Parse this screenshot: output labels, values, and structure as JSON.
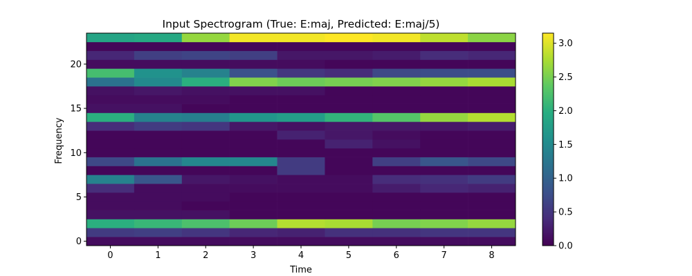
{
  "chart_data": {
    "type": "heatmap",
    "title": "Input Spectrogram (True: E:maj, Predicted: E:maj/5)",
    "xlabel": "Time",
    "ylabel": "Frequency",
    "x": [
      0,
      1,
      2,
      3,
      4,
      5,
      6,
      7,
      8
    ],
    "y": [
      0,
      1,
      2,
      3,
      4,
      5,
      6,
      7,
      8,
      9,
      10,
      11,
      12,
      13,
      14,
      15,
      16,
      17,
      18,
      19,
      20,
      21,
      22,
      23
    ],
    "xticks": [
      0,
      1,
      2,
      3,
      4,
      5,
      6,
      7,
      8
    ],
    "yticks": [
      0,
      5,
      10,
      15,
      20
    ],
    "xlim": [
      -0.5,
      8.5
    ],
    "ylim": [
      -0.5,
      23.5
    ],
    "colormap": "viridis",
    "colorbar": {
      "vmin": 0.0,
      "vmax": 3.15,
      "ticks": [
        0.0,
        0.5,
        1.0,
        1.5,
        2.0,
        2.5,
        3.0
      ],
      "tick_labels": [
        "0.0",
        "0.5",
        "1.0",
        "1.5",
        "2.0",
        "2.5",
        "3.0"
      ]
    },
    "z": [
      [
        0.1,
        0.1,
        0.1,
        0.1,
        0.1,
        0.1,
        0.1,
        0.1,
        0.1
      ],
      [
        0.55,
        0.6,
        0.5,
        0.35,
        0.3,
        0.45,
        0.45,
        0.5,
        0.5
      ],
      [
        2.0,
        2.1,
        2.25,
        2.45,
        2.8,
        2.75,
        2.5,
        2.55,
        2.65
      ],
      [
        0.15,
        0.15,
        0.15,
        0.05,
        0.05,
        0.05,
        0.05,
        0.05,
        0.05
      ],
      [
        0.1,
        0.1,
        0.05,
        0.05,
        0.05,
        0.05,
        0.05,
        0.05,
        0.05
      ],
      [
        0.1,
        0.1,
        0.1,
        0.05,
        0.05,
        0.05,
        0.05,
        0.05,
        0.05
      ],
      [
        0.4,
        0.1,
        0.1,
        0.1,
        0.1,
        0.1,
        0.25,
        0.35,
        0.3
      ],
      [
        1.4,
        0.85,
        0.2,
        0.15,
        0.1,
        0.1,
        0.4,
        0.45,
        0.55
      ],
      [
        0.05,
        0.05,
        0.05,
        0.05,
        0.55,
        0.05,
        0.05,
        0.05,
        0.05
      ],
      [
        0.7,
        1.2,
        1.45,
        1.45,
        0.55,
        0.05,
        0.6,
        0.85,
        0.7
      ],
      [
        0.05,
        0.05,
        0.05,
        0.05,
        0.05,
        0.05,
        0.05,
        0.05,
        0.05
      ],
      [
        0.05,
        0.05,
        0.05,
        0.05,
        0.05,
        0.3,
        0.15,
        0.05,
        0.05
      ],
      [
        0.05,
        0.05,
        0.05,
        0.05,
        0.3,
        0.2,
        0.1,
        0.05,
        0.05
      ],
      [
        0.4,
        0.55,
        0.5,
        0.2,
        0.15,
        0.2,
        0.2,
        0.2,
        0.25
      ],
      [
        2.0,
        1.4,
        1.35,
        1.65,
        1.75,
        2.05,
        2.3,
        2.65,
        2.8
      ],
      [
        0.15,
        0.15,
        0.05,
        0.05,
        0.05,
        0.05,
        0.05,
        0.05,
        0.05
      ],
      [
        0.1,
        0.1,
        0.1,
        0.05,
        0.05,
        0.05,
        0.05,
        0.05,
        0.05
      ],
      [
        0.15,
        0.2,
        0.15,
        0.15,
        0.15,
        0.05,
        0.05,
        0.05,
        0.05
      ],
      [
        1.2,
        1.5,
        2.0,
        2.55,
        2.45,
        2.5,
        2.55,
        2.65,
        2.75
      ],
      [
        2.2,
        1.6,
        1.4,
        0.8,
        0.5,
        0.4,
        0.7,
        0.75,
        0.75
      ],
      [
        0.1,
        0.1,
        0.1,
        0.1,
        0.1,
        0.05,
        0.05,
        0.05,
        0.05
      ],
      [
        0.35,
        0.6,
        0.65,
        0.6,
        0.2,
        0.2,
        0.25,
        0.4,
        0.35
      ],
      [
        0.05,
        0.05,
        0.05,
        0.05,
        0.05,
        0.05,
        0.05,
        0.05,
        0.05
      ],
      [
        1.85,
        1.9,
        2.65,
        3.1,
        3.1,
        3.15,
        3.1,
        2.85,
        2.6
      ]
    ]
  }
}
